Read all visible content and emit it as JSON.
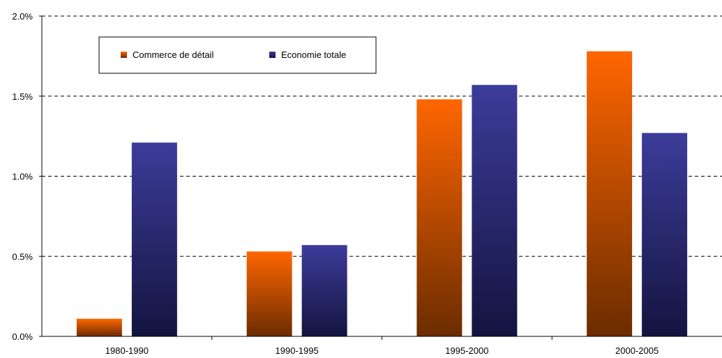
{
  "chart_data": {
    "type": "bar",
    "title": "",
    "xlabel": "",
    "ylabel": "",
    "categories": [
      "1980-1990",
      "1990-1995",
      "1995-2000",
      "2000-2005"
    ],
    "series": [
      {
        "name": "Commerce de détail",
        "values": [
          0.11,
          0.53,
          1.48,
          1.78
        ],
        "color": "#ff6600",
        "color_dark": "#6b2c00"
      },
      {
        "name": "Economie totale",
        "values": [
          1.21,
          0.57,
          1.57,
          1.27
        ],
        "color": "#3c3c9a",
        "color_dark": "#141440"
      }
    ],
    "ylim": [
      0,
      2.0
    ],
    "yticks": [
      0.0,
      0.5,
      1.0,
      1.5,
      2.0
    ],
    "ytick_labels": [
      "0.0%",
      "0.5%",
      "1.0%",
      "1.5%",
      "2.0%"
    ],
    "grid": true,
    "legend_position": "top-left"
  }
}
